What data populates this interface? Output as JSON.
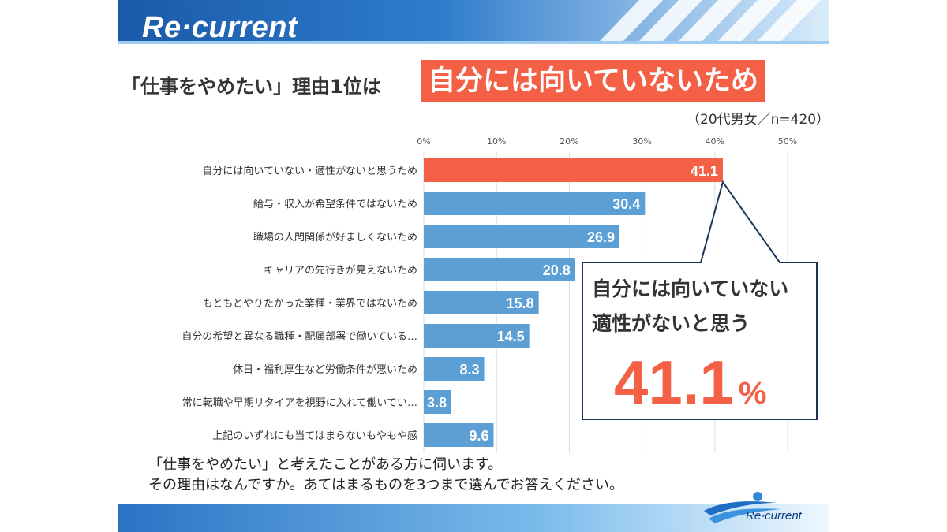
{
  "brand": {
    "name": "Re·current"
  },
  "title": {
    "prefix": "「仕事をやめたい」理由1位は",
    "highlight": "自分には向いていないため"
  },
  "sample_note": "（20代男女／n=420）",
  "callout": {
    "line1": "自分には向いていない",
    "line2": "適性がないと思う",
    "big_value": "41.1",
    "unit": "%"
  },
  "question": {
    "line1": "「仕事をやめたい」と考えたことがある方に伺います。",
    "line2": "その理由はなんですか。あてはまるものを3つまで選んでお答えください。"
  },
  "footer": {
    "logo_text": "Re-current"
  },
  "colors": {
    "accent": "#f36046",
    "bar": "#5b9fd5",
    "header_dark": "#1a5aa8",
    "header_light": "#6fb0e6",
    "navy": "#1b3358"
  },
  "chart_data": {
    "type": "bar",
    "orientation": "horizontal",
    "categories": [
      "自分には向いていない・適性がないと思うため",
      "給与・収入が希望条件ではないため",
      "職場の人間関係が好ましくないため",
      "キャリアの先行きが見えないため",
      "もともとやりたかった業種・業界ではないため",
      "自分の希望と異なる職種・配属部署で働いている…",
      "休日・福利厚生など労働条件が悪いため",
      "常に転職や早期リタイアを視野に入れて働いてい…",
      "上記のいずれにも当てはまらないもやもや感"
    ],
    "values": [
      41.1,
      30.4,
      26.9,
      20.8,
      15.8,
      14.5,
      8.3,
      3.8,
      9.6
    ],
    "value_labels": [
      "41.1",
      "30.4",
      "26.9",
      "20.8",
      "15.8",
      "14.5",
      "8.3",
      "3.8",
      "9.6"
    ],
    "xticks": [
      "0%",
      "10%",
      "20%",
      "30%",
      "40%",
      "50%"
    ],
    "xlim": [
      0,
      50
    ],
    "grid": true,
    "highlight_index": 0
  }
}
